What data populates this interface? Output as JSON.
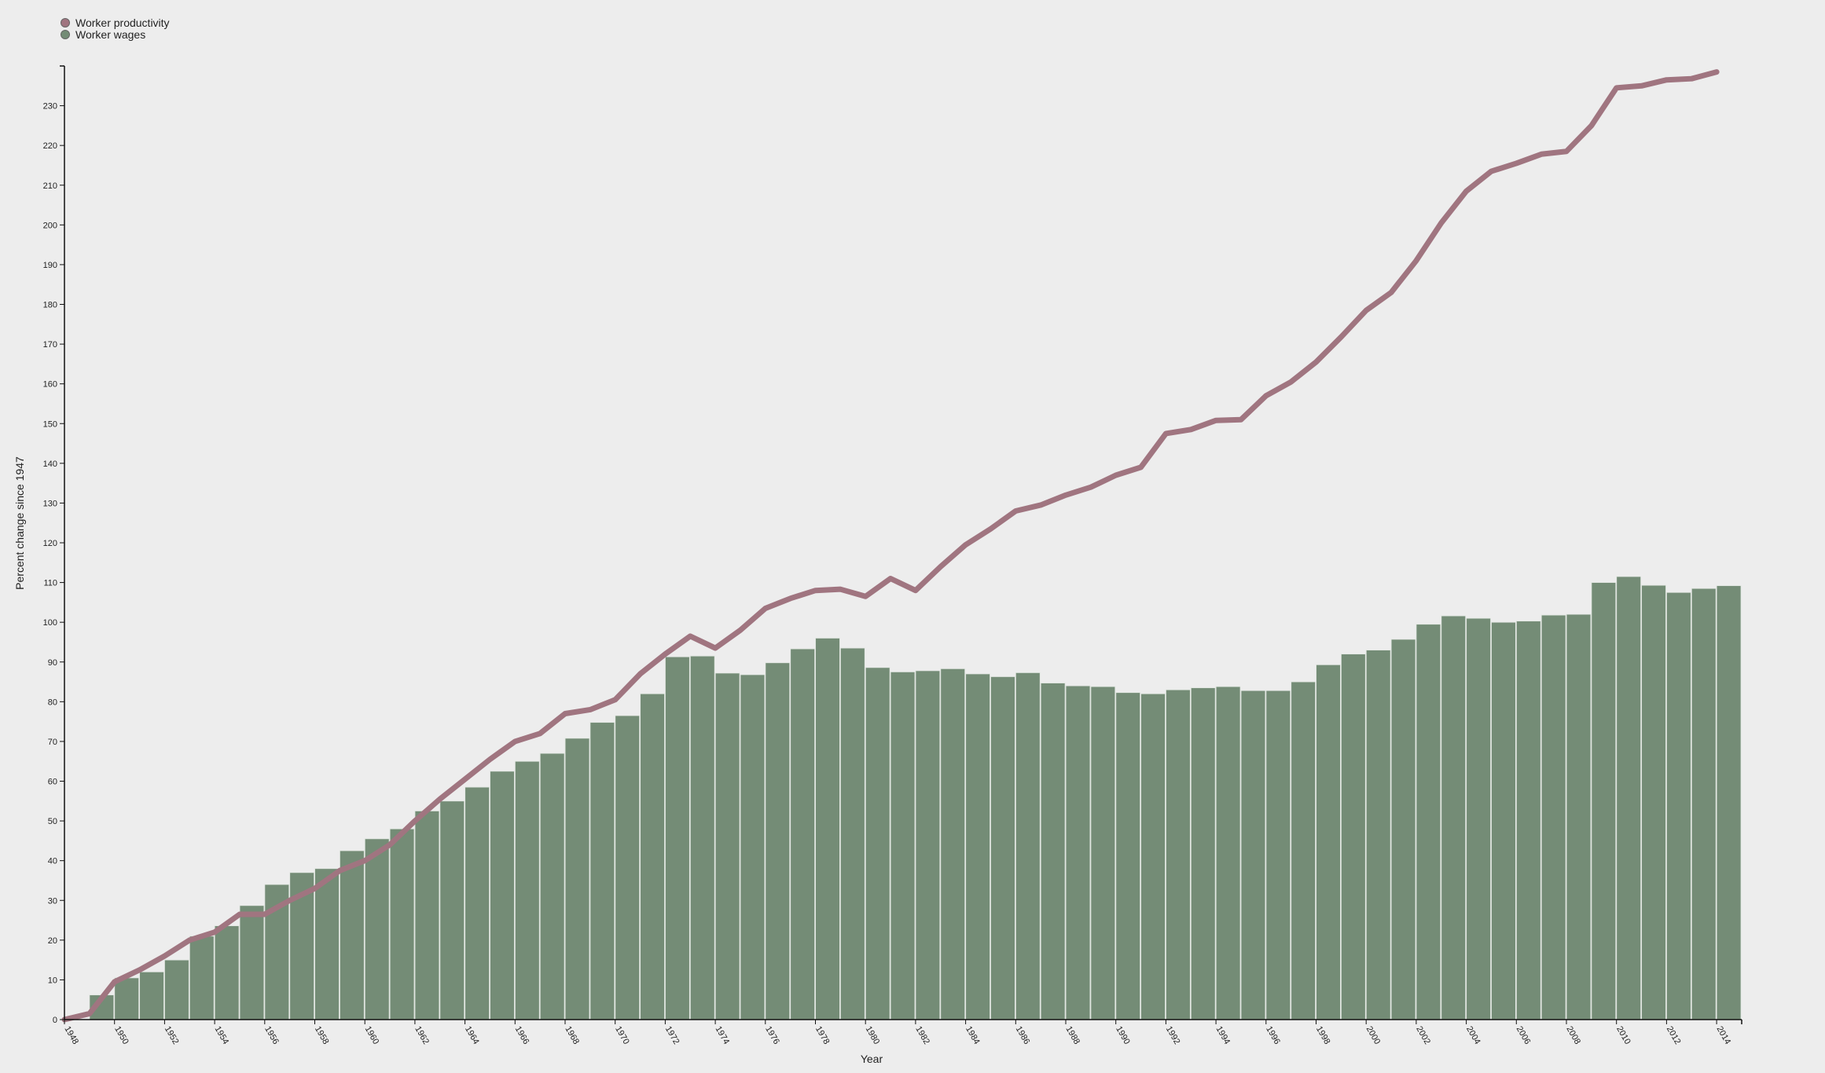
{
  "chart_data": {
    "type": "bar",
    "xlabel": "Year",
    "ylabel": "Percent change since 1947",
    "ylim": [
      0,
      240
    ],
    "yticks": [
      0,
      10,
      20,
      30,
      40,
      50,
      60,
      70,
      80,
      90,
      100,
      110,
      120,
      130,
      140,
      150,
      160,
      170,
      180,
      190,
      200,
      210,
      220,
      230
    ],
    "xticks": [
      1948,
      1950,
      1952,
      1954,
      1956,
      1958,
      1960,
      1962,
      1964,
      1966,
      1968,
      1970,
      1972,
      1974,
      1976,
      1978,
      1980,
      1982,
      1984,
      1986,
      1988,
      1990,
      1992,
      1994,
      1996,
      1998,
      2000,
      2002,
      2004,
      2006,
      2008,
      2010,
      2012,
      2014
    ],
    "legend_position": "top-left",
    "series": [
      {
        "name": "Worker productivity",
        "type": "line",
        "color": "#a07580",
        "x": [
          1948,
          1949,
          1950,
          1951,
          1952,
          1953,
          1954,
          1955,
          1956,
          1957,
          1958,
          1959,
          1960,
          1961,
          1962,
          1963,
          1964,
          1965,
          1966,
          1967,
          1968,
          1969,
          1970,
          1971,
          1972,
          1973,
          1974,
          1975,
          1976,
          1977,
          1978,
          1979,
          1980,
          1981,
          1982,
          1983,
          1984,
          1985,
          1986,
          1987,
          1988,
          1989,
          1990,
          1991,
          1992,
          1993,
          1994,
          1995,
          1996,
          1997,
          1998,
          1999,
          2000,
          2001,
          2002,
          2003,
          2004,
          2005,
          2006,
          2007,
          2008,
          2009,
          2010,
          2011,
          2012,
          2013,
          2014
        ],
        "values": [
          0,
          1.5,
          9.5,
          12.5,
          16,
          20,
          22,
          26.5,
          26.5,
          30,
          33,
          37.5,
          40,
          44,
          50,
          55.5,
          60.5,
          65.5,
          70,
          72,
          77,
          78,
          80.5,
          87,
          92,
          96.5,
          93.5,
          98,
          103.5,
          106,
          108,
          108.3,
          106.5,
          111,
          108,
          114,
          119.5,
          123.5,
          128,
          129.5,
          132,
          134,
          137,
          139,
          147.5,
          148.5,
          150.8,
          151,
          157,
          160.5,
          165.5,
          171.8,
          178.5,
          183,
          191,
          200.5,
          208.5,
          213.5,
          215.5,
          217.8,
          218.5,
          225,
          234.5,
          235,
          236.5,
          236.8,
          238.5
        ]
      },
      {
        "name": "Worker wages",
        "type": "bar",
        "color": "#748c76",
        "x": [
          1948,
          1949,
          1950,
          1951,
          1952,
          1953,
          1954,
          1955,
          1956,
          1957,
          1958,
          1959,
          1960,
          1961,
          1962,
          1963,
          1964,
          1965,
          1966,
          1967,
          1968,
          1969,
          1970,
          1971,
          1972,
          1973,
          1974,
          1975,
          1976,
          1977,
          1978,
          1979,
          1980,
          1981,
          1982,
          1983,
          1984,
          1985,
          1986,
          1987,
          1988,
          1989,
          1990,
          1991,
          1992,
          1993,
          1994,
          1995,
          1996,
          1997,
          1998,
          1999,
          2000,
          2001,
          2002,
          2003,
          2004,
          2005,
          2006,
          2007,
          2008,
          2009,
          2010,
          2011,
          2012,
          2013,
          2014
        ],
        "values": [
          0,
          6.2,
          10.5,
          12,
          15,
          21,
          23.6,
          28.7,
          34,
          37,
          38,
          42.5,
          45.5,
          48,
          52.5,
          55,
          58.5,
          62.5,
          65,
          67,
          70.8,
          74.8,
          76.5,
          82,
          91.3,
          91.5,
          87.2,
          86.8,
          89.8,
          93.3,
          96,
          93.5,
          88.6,
          87.5,
          87.8,
          88.3,
          87,
          86.3,
          87.3,
          84.7,
          84,
          83.8,
          82.3,
          82,
          83,
          83.5,
          83.8,
          82.8,
          82.8,
          85,
          89.3,
          92,
          93,
          95.7,
          99.5,
          101.6,
          101,
          100,
          100.3,
          101.8,
          102,
          110,
          111.5,
          109.3,
          107.5,
          108.5,
          109.2
        ]
      }
    ]
  }
}
